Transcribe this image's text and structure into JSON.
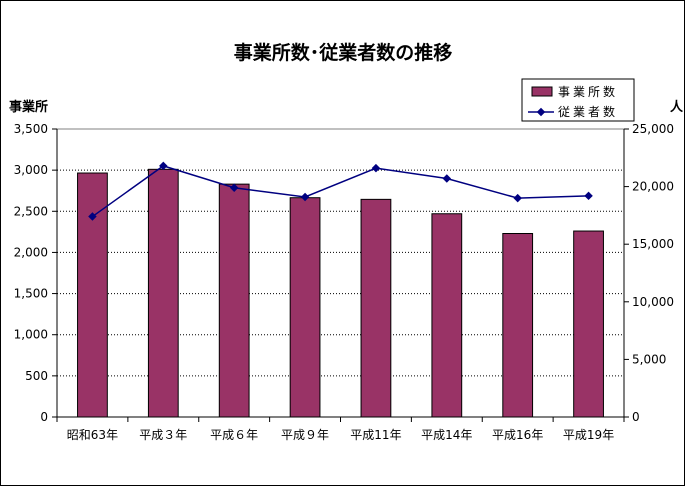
{
  "chart_data": {
    "type": "bar",
    "title": "事業所数･従業者数の推移",
    "categories": [
      "昭和63年",
      "平成３年",
      "平成６年",
      "平成９年",
      "平成11年",
      "平成14年",
      "平成16年",
      "平成19年"
    ],
    "series": [
      {
        "name": "事業所数",
        "type": "bar",
        "axis": "left",
        "color": "#993366",
        "values": [
          2965,
          3010,
          2830,
          2665,
          2645,
          2470,
          2230,
          2260
        ]
      },
      {
        "name": "従業者数",
        "type": "line",
        "axis": "right",
        "color": "#000080",
        "values": [
          17400,
          21800,
          19900,
          19100,
          21600,
          20700,
          19000,
          19200
        ]
      }
    ],
    "ylabel": "事業所",
    "y2label": "人",
    "ylim": [
      0,
      3500
    ],
    "y2lim": [
      0,
      25000
    ],
    "yticks": [
      "0",
      "500",
      "1,000",
      "1,500",
      "2,000",
      "2,500",
      "3,000",
      "3,500"
    ],
    "y2ticks": [
      "0",
      "5,000",
      "10,000",
      "15,000",
      "20,000",
      "25,000"
    ],
    "grid": true,
    "legend_position": "top-right"
  }
}
